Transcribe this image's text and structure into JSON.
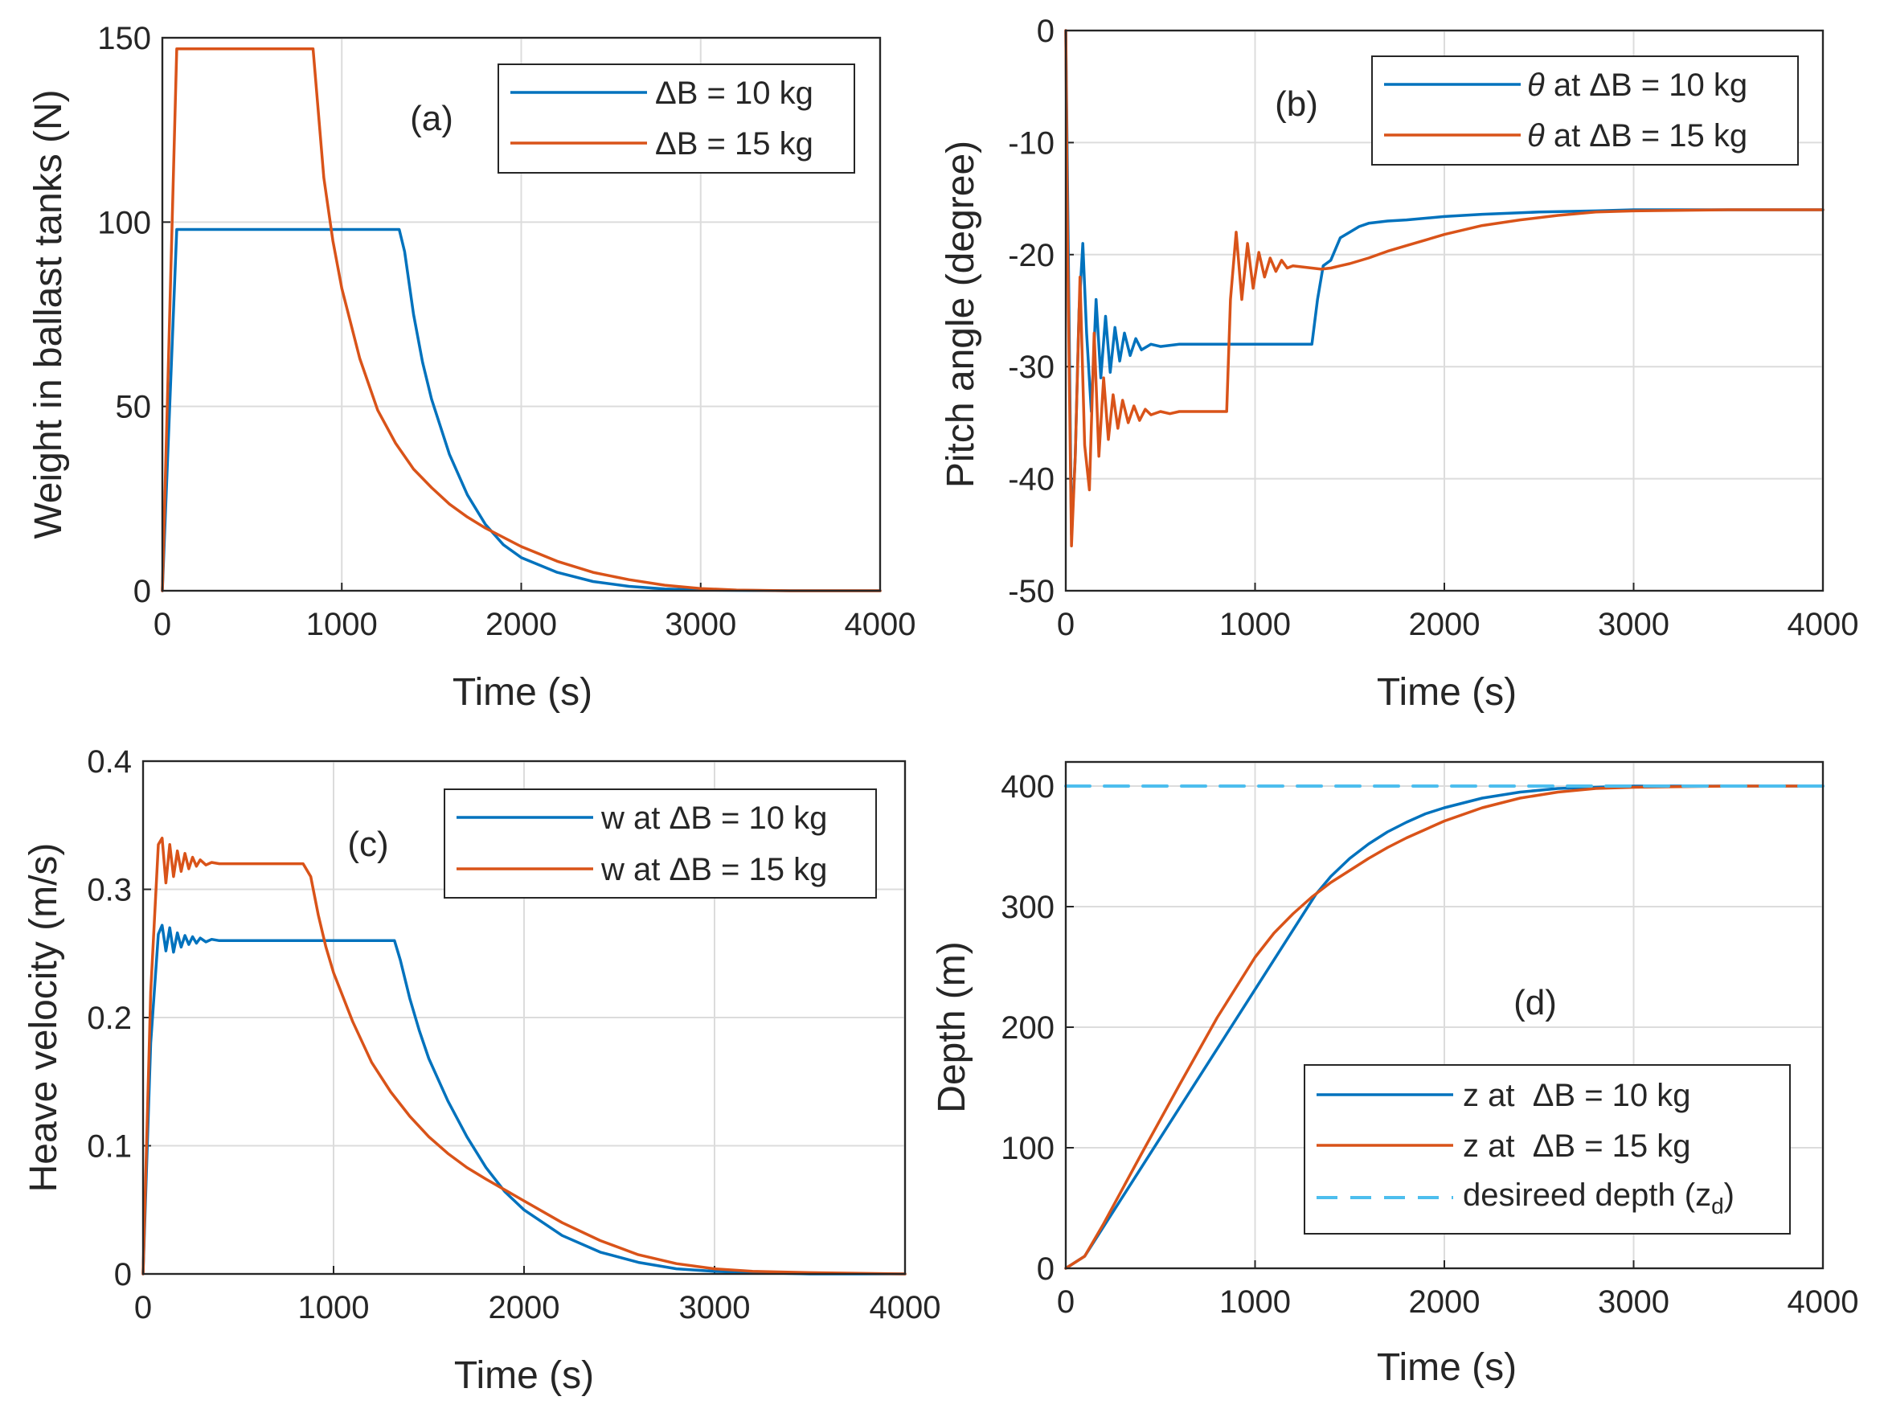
{
  "chart_data": [
    {
      "type": "line",
      "panel": "(a)",
      "xlabel": "Time (s)",
      "ylabel": "Weight in ballast tanks (N)",
      "xlim": [
        0,
        4000
      ],
      "ylim": [
        0,
        150
      ],
      "xticks": [
        0,
        1000,
        2000,
        3000,
        4000
      ],
      "yticks": [
        0,
        50,
        100,
        150
      ],
      "grid": true,
      "legend_position": "top-right",
      "series": [
        {
          "name": "ΔB = 10 kg",
          "color": "#0072BD",
          "x": [
            0,
            80,
            1320,
            1350,
            1400,
            1450,
            1500,
            1600,
            1700,
            1800,
            1900,
            2000,
            2200,
            2400,
            2600,
            2800,
            3000,
            3200,
            3500,
            4000
          ],
          "y": [
            0,
            98,
            98,
            92,
            75,
            62,
            52,
            37,
            26,
            18,
            12.5,
            9,
            5,
            2.5,
            1.2,
            0.5,
            0.2,
            0.1,
            0,
            0
          ]
        },
        {
          "name": "ΔB = 15 kg",
          "color": "#D95319",
          "x": [
            0,
            80,
            840,
            900,
            950,
            1000,
            1100,
            1200,
            1300,
            1400,
            1500,
            1600,
            1700,
            1800,
            2000,
            2200,
            2400,
            2600,
            2800,
            3000,
            3200,
            3500,
            4000
          ],
          "y": [
            0,
            147,
            147,
            112,
            95,
            82,
            63,
            49,
            40,
            33,
            28,
            23.5,
            20,
            17,
            12,
            8,
            5,
            3,
            1.5,
            0.6,
            0.2,
            0,
            0
          ]
        }
      ]
    },
    {
      "type": "line",
      "panel": "(b)",
      "xlabel": "Time (s)",
      "ylabel": "Pitch angle (degree)",
      "xlim": [
        0,
        4000
      ],
      "ylim": [
        -50,
        0
      ],
      "xticks": [
        0,
        1000,
        2000,
        3000,
        4000
      ],
      "yticks": [
        -50,
        -40,
        -30,
        -20,
        -10,
        0
      ],
      "grid": true,
      "legend_position": "top-right",
      "series": [
        {
          "name": "θ at ΔB = 10 kg",
          "color": "#0072BD",
          "x": [
            0,
            10,
            30,
            50,
            70,
            90,
            110,
            135,
            160,
            185,
            210,
            235,
            260,
            285,
            310,
            340,
            370,
            400,
            450,
            500,
            600,
            1300,
            1330,
            1360,
            1400,
            1450,
            1500,
            1550,
            1600,
            1700,
            1800,
            2000,
            2200,
            2500,
            2800,
            3000,
            3500,
            4000
          ],
          "y": [
            0,
            -15,
            -45,
            -38,
            -25,
            -19,
            -27,
            -34,
            -24,
            -31,
            -25.5,
            -30.5,
            -26.5,
            -29.5,
            -27,
            -29,
            -27.5,
            -28.5,
            -28,
            -28.2,
            -28,
            -28,
            -24,
            -21,
            -20.5,
            -18.5,
            -18,
            -17.5,
            -17.2,
            -17,
            -16.9,
            -16.6,
            -16.4,
            -16.2,
            -16.1,
            -16,
            -16,
            -16
          ]
        },
        {
          "name": "θ at ΔB = 15 kg",
          "color": "#D95319",
          "x": [
            0,
            10,
            30,
            50,
            75,
            100,
            125,
            150,
            175,
            200,
            225,
            250,
            275,
            300,
            330,
            360,
            390,
            420,
            450,
            500,
            550,
            600,
            850,
            870,
            900,
            930,
            960,
            990,
            1020,
            1050,
            1080,
            1110,
            1140,
            1170,
            1200,
            1250,
            1300,
            1350,
            1400,
            1450,
            1500,
            1600,
            1700,
            1800,
            1900,
            2000,
            2200,
            2400,
            2600,
            2800,
            3000,
            3500,
            4000
          ],
          "y": [
            0,
            -20,
            -46,
            -38,
            -22,
            -37,
            -41,
            -27,
            -38,
            -31,
            -36.5,
            -32.5,
            -35.5,
            -33,
            -35,
            -33.5,
            -34.8,
            -33.8,
            -34.3,
            -34,
            -34.2,
            -34,
            -34,
            -24,
            -18,
            -24,
            -19,
            -23,
            -19.8,
            -22,
            -20.3,
            -21.5,
            -20.5,
            -21.2,
            -21,
            -21.1,
            -21.2,
            -21.3,
            -21.2,
            -21,
            -20.8,
            -20.3,
            -19.7,
            -19.2,
            -18.7,
            -18.2,
            -17.4,
            -16.9,
            -16.5,
            -16.2,
            -16.1,
            -16,
            -16
          ]
        }
      ]
    },
    {
      "type": "line",
      "panel": "(c)",
      "xlabel": "Time (s)",
      "ylabel": "Heave velocity (m/s)",
      "xlim": [
        0,
        4000
      ],
      "ylim": [
        0,
        0.4
      ],
      "xticks": [
        0,
        1000,
        2000,
        3000,
        4000
      ],
      "yticks": [
        0,
        0.1,
        0.2,
        0.3,
        0.4
      ],
      "grid": true,
      "legend_position": "top-right",
      "series": [
        {
          "name": "w at ΔB = 10 kg",
          "color": "#0072BD",
          "x": [
            0,
            40,
            80,
            100,
            120,
            140,
            160,
            180,
            200,
            220,
            240,
            260,
            280,
            300,
            330,
            360,
            400,
            1320,
            1350,
            1400,
            1450,
            1500,
            1600,
            1700,
            1800,
            1900,
            2000,
            2200,
            2400,
            2600,
            2800,
            3000,
            3200,
            3500,
            4000
          ],
          "y": [
            0,
            0.18,
            0.265,
            0.272,
            0.252,
            0.27,
            0.251,
            0.266,
            0.255,
            0.264,
            0.257,
            0.263,
            0.258,
            0.262,
            0.259,
            0.261,
            0.26,
            0.26,
            0.245,
            0.215,
            0.19,
            0.168,
            0.135,
            0.107,
            0.083,
            0.064,
            0.05,
            0.03,
            0.017,
            0.009,
            0.004,
            0.002,
            0.001,
            0,
            0
          ]
        },
        {
          "name": "w at ΔB = 15 kg",
          "color": "#D95319",
          "x": [
            0,
            40,
            80,
            100,
            120,
            140,
            160,
            180,
            200,
            220,
            240,
            260,
            280,
            300,
            330,
            360,
            400,
            840,
            880,
            920,
            960,
            1000,
            1100,
            1200,
            1300,
            1400,
            1500,
            1600,
            1700,
            1800,
            2000,
            2200,
            2400,
            2600,
            2800,
            3000,
            3200,
            3500,
            4000
          ],
          "y": [
            0,
            0.22,
            0.335,
            0.34,
            0.305,
            0.335,
            0.31,
            0.33,
            0.314,
            0.328,
            0.316,
            0.325,
            0.318,
            0.323,
            0.319,
            0.321,
            0.32,
            0.32,
            0.31,
            0.28,
            0.255,
            0.235,
            0.197,
            0.165,
            0.142,
            0.123,
            0.107,
            0.094,
            0.083,
            0.074,
            0.057,
            0.04,
            0.026,
            0.015,
            0.008,
            0.004,
            0.002,
            0.001,
            0
          ]
        }
      ]
    },
    {
      "type": "line",
      "panel": "(d)",
      "xlabel": "Time (s)",
      "ylabel": "Depth (m)",
      "xlim": [
        0,
        4000
      ],
      "ylim": [
        0,
        420
      ],
      "xticks": [
        0,
        1000,
        2000,
        3000,
        4000
      ],
      "yticks": [
        0,
        100,
        200,
        300,
        400
      ],
      "grid": true,
      "legend_position": "bottom-right",
      "series": [
        {
          "name": "z at ΔB = 10 kg",
          "color": "#0072BD",
          "x": [
            0,
            100,
            1320,
            1400,
            1500,
            1600,
            1700,
            1800,
            1900,
            2000,
            2200,
            2400,
            2600,
            2800,
            3000,
            3500,
            4000
          ],
          "y": [
            0,
            10,
            310,
            325,
            340,
            352,
            362,
            370,
            377,
            382,
            390,
            395,
            398,
            399,
            400,
            400,
            400
          ]
        },
        {
          "name": "z at ΔB = 15 kg",
          "color": "#D95319",
          "x": [
            0,
            100,
            200,
            400,
            600,
            800,
            1000,
            1100,
            1200,
            1300,
            1400,
            1500,
            1600,
            1700,
            1800,
            2000,
            2200,
            2400,
            2600,
            2800,
            3000,
            3500,
            4000
          ],
          "y": [
            0,
            10,
            37,
            95,
            152,
            208,
            258,
            278,
            294,
            308,
            320,
            330,
            340,
            349,
            357,
            371,
            382,
            390,
            395,
            398,
            399,
            400,
            400
          ]
        },
        {
          "name": "desireed depth (z_d)",
          "color": "#4DBEEE",
          "dashed": true,
          "x": [
            0,
            4000
          ],
          "y": [
            400,
            400
          ]
        }
      ]
    }
  ],
  "legend_texts": {
    "a": [
      "ΔB = 10 kg",
      "ΔB = 15 kg"
    ],
    "b_prefix": "θ",
    "b": [
      " at ΔB = 10 kg",
      " at ΔB = 15 kg"
    ],
    "c": [
      "w at ΔB = 10 kg",
      "w at ΔB = 15 kg"
    ],
    "d": [
      "z at  ΔB = 10 kg",
      "z at  ΔB = 15 kg"
    ],
    "d3_main": "desireed depth (z",
    "d3_sub": "d",
    "d3_close": ")"
  }
}
